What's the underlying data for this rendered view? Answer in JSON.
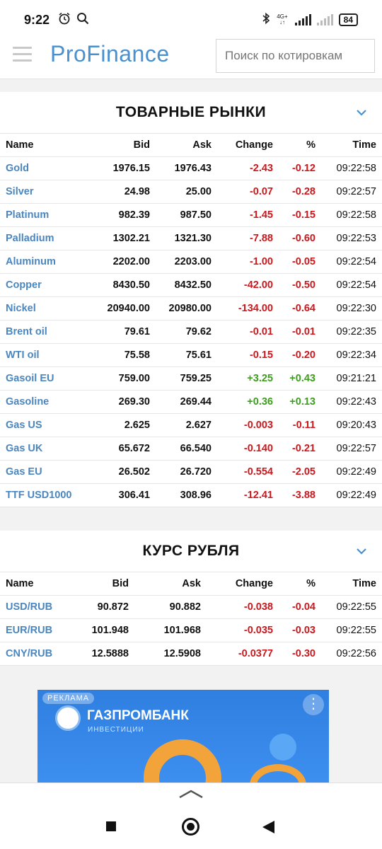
{
  "status": {
    "time": "9:22",
    "net_top": "4G+",
    "net_bottom": "↓↑",
    "battery": "84"
  },
  "header": {
    "logo": "ProFinance",
    "search_placeholder": "Поиск по котировкам"
  },
  "commodities": {
    "title": "ТОВАРНЫЕ РЫНКИ",
    "columns": [
      "Name",
      "Bid",
      "Ask",
      "Change",
      "%",
      "Time"
    ],
    "rows": [
      {
        "name": "Gold",
        "bid": "1976.15",
        "ask": "1976.43",
        "change": "-2.43",
        "pct": "-0.12",
        "time": "09:22:58",
        "dir": "neg"
      },
      {
        "name": "Silver",
        "bid": "24.98",
        "ask": "25.00",
        "change": "-0.07",
        "pct": "-0.28",
        "time": "09:22:57",
        "dir": "neg"
      },
      {
        "name": "Platinum",
        "bid": "982.39",
        "ask": "987.50",
        "change": "-1.45",
        "pct": "-0.15",
        "time": "09:22:58",
        "dir": "neg"
      },
      {
        "name": "Palladium",
        "bid": "1302.21",
        "ask": "1321.30",
        "change": "-7.88",
        "pct": "-0.60",
        "time": "09:22:53",
        "dir": "neg"
      },
      {
        "name": "Aluminum",
        "bid": "2202.00",
        "ask": "2203.00",
        "change": "-1.00",
        "pct": "-0.05",
        "time": "09:22:54",
        "dir": "neg"
      },
      {
        "name": "Copper",
        "bid": "8430.50",
        "ask": "8432.50",
        "change": "-42.00",
        "pct": "-0.50",
        "time": "09:22:54",
        "dir": "neg"
      },
      {
        "name": "Nickel",
        "bid": "20940.00",
        "ask": "20980.00",
        "change": "-134.00",
        "pct": "-0.64",
        "time": "09:22:30",
        "dir": "neg"
      },
      {
        "name": "Brent oil",
        "bid": "79.61",
        "ask": "79.62",
        "change": "-0.01",
        "pct": "-0.01",
        "time": "09:22:35",
        "dir": "neg"
      },
      {
        "name": "WTI oil",
        "bid": "75.58",
        "ask": "75.61",
        "change": "-0.15",
        "pct": "-0.20",
        "time": "09:22:34",
        "dir": "neg"
      },
      {
        "name": "Gasoil EU",
        "bid": "759.00",
        "ask": "759.25",
        "change": "+3.25",
        "pct": "+0.43",
        "time": "09:21:21",
        "dir": "pos"
      },
      {
        "name": "Gasoline",
        "bid": "269.30",
        "ask": "269.44",
        "change": "+0.36",
        "pct": "+0.13",
        "time": "09:22:43",
        "dir": "pos"
      },
      {
        "name": "Gas US",
        "bid": "2.625",
        "ask": "2.627",
        "change": "-0.003",
        "pct": "-0.11",
        "time": "09:20:43",
        "dir": "neg"
      },
      {
        "name": "Gas UK",
        "bid": "65.672",
        "ask": "66.540",
        "change": "-0.140",
        "pct": "-0.21",
        "time": "09:22:57",
        "dir": "neg"
      },
      {
        "name": "Gas EU",
        "bid": "26.502",
        "ask": "26.720",
        "change": "-0.554",
        "pct": "-2.05",
        "time": "09:22:49",
        "dir": "neg"
      },
      {
        "name": "TTF USD1000",
        "bid": "306.41",
        "ask": "308.96",
        "change": "-12.41",
        "pct": "-3.88",
        "time": "09:22:49",
        "dir": "neg"
      }
    ]
  },
  "ruble": {
    "title": "КУРС РУБЛЯ",
    "columns": [
      "Name",
      "Bid",
      "Ask",
      "Change",
      "%",
      "Time"
    ],
    "rows": [
      {
        "name": "USD/RUB",
        "bid": "90.872",
        "ask": "90.882",
        "change": "-0.038",
        "pct": "-0.04",
        "time": "09:22:55",
        "dir": "neg"
      },
      {
        "name": "EUR/RUB",
        "bid": "101.948",
        "ask": "101.968",
        "change": "-0.035",
        "pct": "-0.03",
        "time": "09:22:55",
        "dir": "neg"
      },
      {
        "name": "CNY/RUB",
        "bid": "12.5888",
        "ask": "12.5908",
        "change": "-0.0377",
        "pct": "-0.30",
        "time": "09:22:56",
        "dir": "neg"
      }
    ]
  },
  "ad": {
    "tag": "РЕКЛАМА",
    "brand": "ГАЗПРОМБАНК",
    "sub": "ИНВЕСТИЦИИ",
    "menu_glyph": "⋮"
  },
  "icons": [
    "alarm-icon",
    "search-icon",
    "bluetooth-icon",
    "signal-icon",
    "battery-icon",
    "menu-icon",
    "chevron-down-icon",
    "chevron-up-icon",
    "recents-icon",
    "home-icon",
    "back-icon"
  ],
  "colors": {
    "accent": "#4a90cf",
    "negative": "#d0161b",
    "positive": "#3a9f1a"
  }
}
